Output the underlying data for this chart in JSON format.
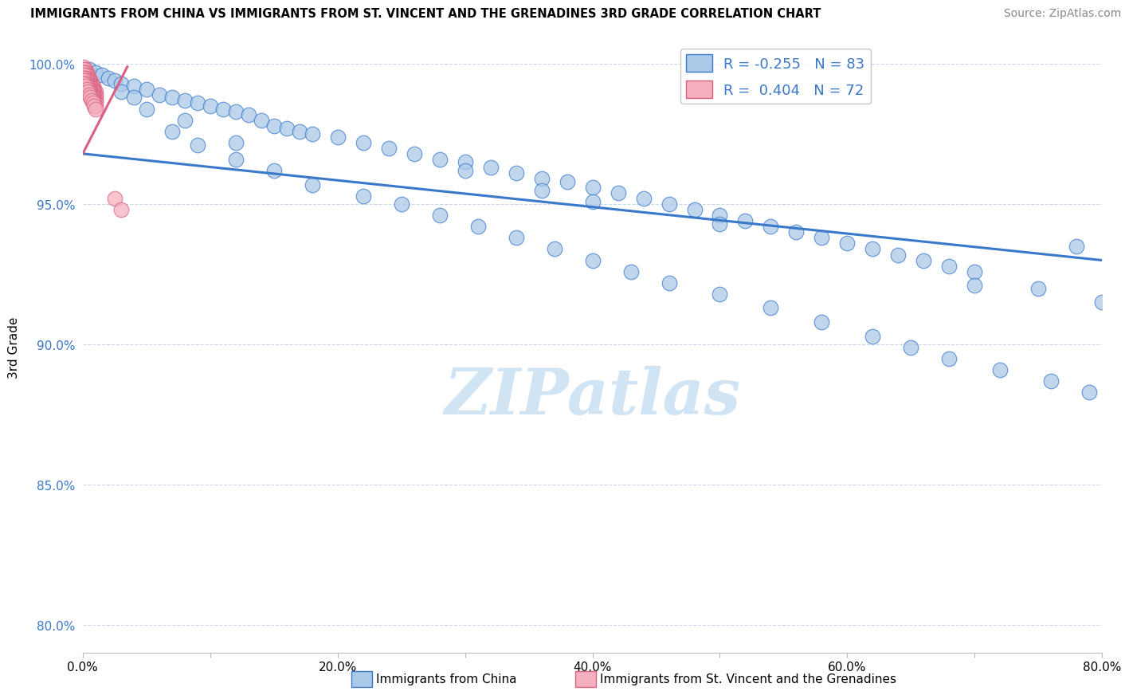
{
  "title": "IMMIGRANTS FROM CHINA VS IMMIGRANTS FROM ST. VINCENT AND THE GRENADINES 3RD GRADE CORRELATION CHART",
  "source": "Source: ZipAtlas.com",
  "xlabel_blue": "Immigrants from China",
  "xlabel_pink": "Immigrants from St. Vincent and the Grenadines",
  "ylabel": "3rd Grade",
  "R_blue": -0.255,
  "N_blue": 83,
  "R_pink": 0.404,
  "N_pink": 72,
  "xlim": [
    0.0,
    0.8
  ],
  "ylim": [
    0.79,
    1.008
  ],
  "yticks": [
    0.8,
    0.85,
    0.9,
    0.95,
    1.0
  ],
  "ytick_labels": [
    "80.0%",
    "85.0%",
    "90.0%",
    "95.0%",
    "100.0%"
  ],
  "xticks": [
    0.0,
    0.1,
    0.2,
    0.3,
    0.4,
    0.5,
    0.6,
    0.7,
    0.8
  ],
  "xtick_labels": [
    "0.0%",
    "",
    "20.0%",
    "",
    "40.0%",
    "",
    "60.0%",
    "",
    "80.0%"
  ],
  "color_blue": "#aac9e8",
  "color_blue_line": "#3a78c9",
  "color_pink": "#f5b0c0",
  "color_pink_line": "#d96080",
  "legend_text_color": "#3a78c9",
  "watermark_color": "#d0e4f4",
  "blue_trend_x": [
    0.0,
    0.8
  ],
  "blue_trend_y": [
    0.968,
    0.93
  ],
  "pink_trend_x": [
    0.0,
    0.035
  ],
  "pink_trend_y": [
    0.968,
    0.999
  ],
  "blue_points_x": [
    0.005,
    0.01,
    0.015,
    0.02,
    0.025,
    0.03,
    0.04,
    0.05,
    0.06,
    0.07,
    0.08,
    0.09,
    0.1,
    0.11,
    0.12,
    0.13,
    0.14,
    0.15,
    0.16,
    0.17,
    0.18,
    0.2,
    0.22,
    0.24,
    0.26,
    0.28,
    0.3,
    0.32,
    0.34,
    0.36,
    0.38,
    0.4,
    0.42,
    0.44,
    0.46,
    0.48,
    0.5,
    0.52,
    0.54,
    0.56,
    0.58,
    0.6,
    0.62,
    0.64,
    0.66,
    0.68,
    0.7,
    0.75,
    0.8,
    0.03,
    0.05,
    0.07,
    0.09,
    0.12,
    0.15,
    0.18,
    0.22,
    0.25,
    0.28,
    0.31,
    0.34,
    0.37,
    0.4,
    0.43,
    0.46,
    0.5,
    0.54,
    0.58,
    0.62,
    0.65,
    0.68,
    0.72,
    0.76,
    0.79,
    0.04,
    0.08,
    0.12,
    0.3,
    0.5,
    0.7,
    0.36,
    0.4,
    0.78
  ],
  "blue_points_y": [
    0.998,
    0.997,
    0.996,
    0.995,
    0.994,
    0.993,
    0.992,
    0.991,
    0.989,
    0.988,
    0.987,
    0.986,
    0.985,
    0.984,
    0.983,
    0.982,
    0.98,
    0.978,
    0.977,
    0.976,
    0.975,
    0.974,
    0.972,
    0.97,
    0.968,
    0.966,
    0.965,
    0.963,
    0.961,
    0.959,
    0.958,
    0.956,
    0.954,
    0.952,
    0.95,
    0.948,
    0.946,
    0.944,
    0.942,
    0.94,
    0.938,
    0.936,
    0.934,
    0.932,
    0.93,
    0.928,
    0.926,
    0.92,
    0.915,
    0.99,
    0.984,
    0.976,
    0.971,
    0.966,
    0.962,
    0.957,
    0.953,
    0.95,
    0.946,
    0.942,
    0.938,
    0.934,
    0.93,
    0.926,
    0.922,
    0.918,
    0.913,
    0.908,
    0.903,
    0.899,
    0.895,
    0.891,
    0.887,
    0.883,
    0.988,
    0.98,
    0.972,
    0.962,
    0.943,
    0.921,
    0.955,
    0.951,
    0.935
  ],
  "pink_points_x": [
    0.001,
    0.002,
    0.003,
    0.004,
    0.005,
    0.006,
    0.007,
    0.008,
    0.009,
    0.01,
    0.001,
    0.002,
    0.003,
    0.004,
    0.005,
    0.006,
    0.007,
    0.008,
    0.009,
    0.01,
    0.001,
    0.002,
    0.003,
    0.004,
    0.005,
    0.006,
    0.007,
    0.008,
    0.009,
    0.01,
    0.001,
    0.002,
    0.003,
    0.004,
    0.005,
    0.006,
    0.007,
    0.008,
    0.009,
    0.01,
    0.001,
    0.002,
    0.003,
    0.004,
    0.005,
    0.006,
    0.007,
    0.008,
    0.009,
    0.01,
    0.001,
    0.002,
    0.003,
    0.004,
    0.005,
    0.006,
    0.007,
    0.008,
    0.009,
    0.01,
    0.001,
    0.002,
    0.003,
    0.004,
    0.005,
    0.006,
    0.007,
    0.008,
    0.009,
    0.01,
    0.025,
    0.03
  ],
  "pink_points_y": [
    0.999,
    0.998,
    0.997,
    0.996,
    0.995,
    0.994,
    0.993,
    0.992,
    0.991,
    0.99,
    0.998,
    0.997,
    0.996,
    0.995,
    0.994,
    0.993,
    0.992,
    0.991,
    0.99,
    0.989,
    0.997,
    0.996,
    0.995,
    0.994,
    0.993,
    0.992,
    0.991,
    0.99,
    0.989,
    0.988,
    0.996,
    0.995,
    0.994,
    0.993,
    0.992,
    0.991,
    0.99,
    0.989,
    0.988,
    0.987,
    0.995,
    0.994,
    0.993,
    0.992,
    0.991,
    0.99,
    0.989,
    0.988,
    0.987,
    0.986,
    0.994,
    0.993,
    0.992,
    0.991,
    0.99,
    0.989,
    0.988,
    0.987,
    0.986,
    0.985,
    0.993,
    0.992,
    0.991,
    0.99,
    0.989,
    0.988,
    0.987,
    0.986,
    0.985,
    0.984,
    0.952,
    0.948
  ]
}
